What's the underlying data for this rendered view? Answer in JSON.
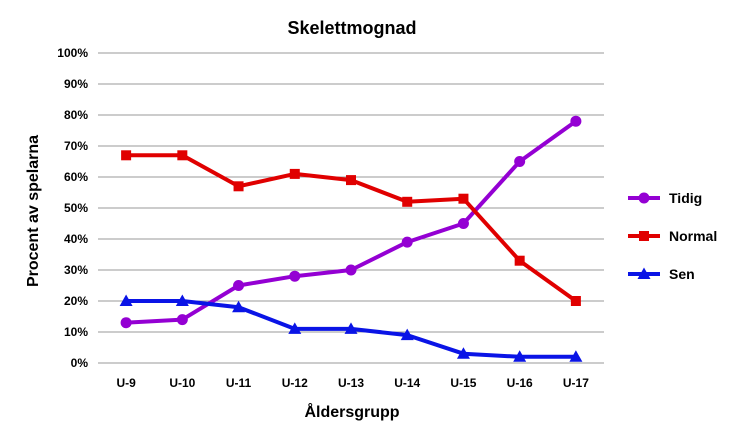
{
  "chart_data": {
    "type": "line",
    "title": "Skelettmognad",
    "xlabel": "Åldersgrupp",
    "ylabel": "Procent av spelarna",
    "categories": [
      "U-9",
      "U-10",
      "U-11",
      "U-12",
      "U-13",
      "U-14",
      "U-15",
      "U-16",
      "U-17"
    ],
    "ylim": [
      0,
      100
    ],
    "yticks": [
      "0%",
      "10%",
      "20%",
      "30%",
      "40%",
      "50%",
      "60%",
      "70%",
      "80%",
      "90%",
      "100%"
    ],
    "grid": true,
    "legend_position": "right",
    "series": [
      {
        "name": "Tidig",
        "color": "#9400d3",
        "marker": "circle",
        "values": [
          13,
          14,
          25,
          28,
          30,
          39,
          45,
          65,
          78
        ]
      },
      {
        "name": "Normal",
        "color": "#e00000",
        "marker": "square",
        "values": [
          67,
          67,
          57,
          61,
          59,
          52,
          53,
          33,
          20
        ]
      },
      {
        "name": "Sen",
        "color": "#0a14e6",
        "marker": "triangle",
        "values": [
          20,
          20,
          18,
          11,
          11,
          9,
          3,
          2,
          2
        ]
      }
    ]
  }
}
